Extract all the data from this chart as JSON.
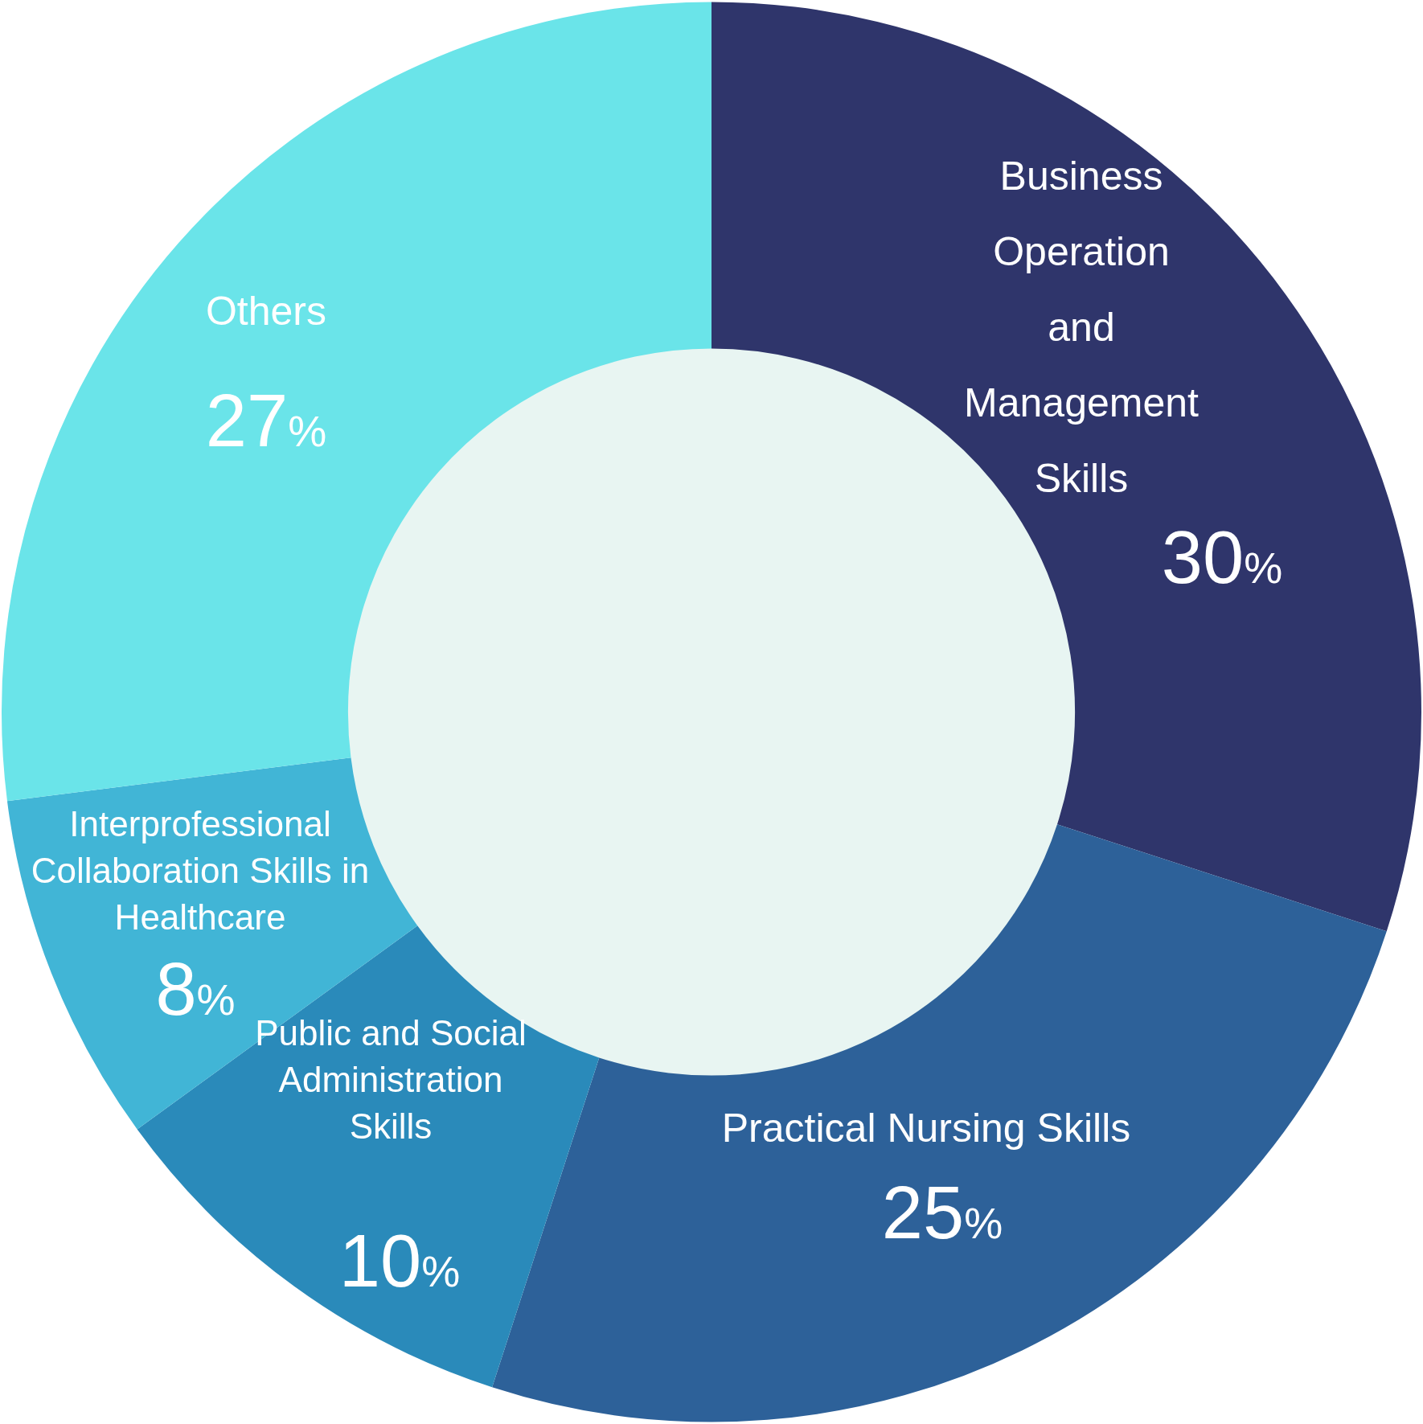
{
  "chart_data": {
    "type": "donut",
    "categories": [
      "Business Operation and Management Skills",
      "Practical Nursing Skills",
      "Public and Social Administration Skills",
      "Interprofessional Collaboration Skills in Healthcare",
      "Others"
    ],
    "values": [
      30,
      25,
      10,
      8,
      27
    ],
    "colors": [
      "#2f356b",
      "#2d6199",
      "#2a8aba",
      "#41b5d6",
      "#6ae4e9"
    ],
    "value_labels": [
      "30%",
      "25%",
      "10%",
      "8%",
      "27%"
    ],
    "legend": false
  }
}
